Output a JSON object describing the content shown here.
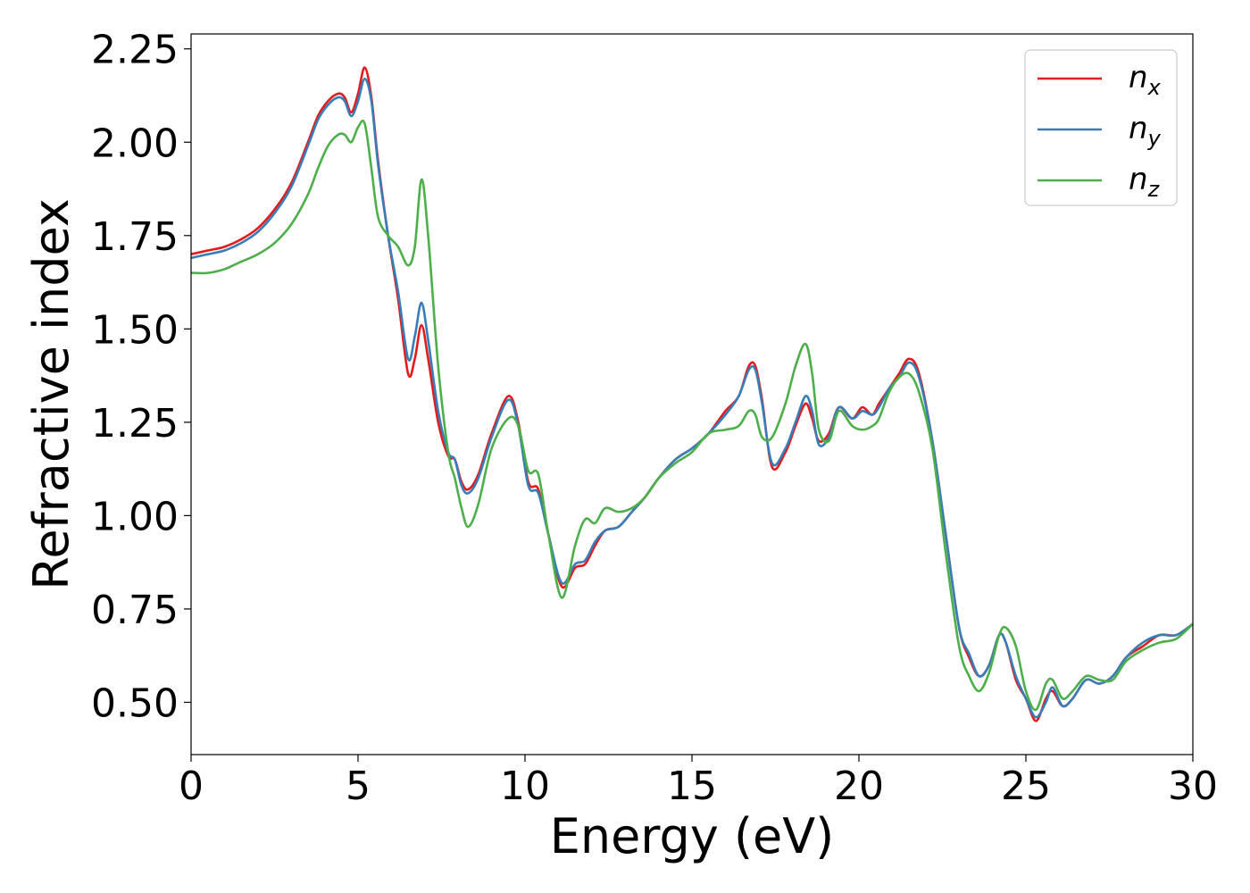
{
  "chart_data": {
    "type": "line",
    "title": "",
    "xlabel": "Energy (eV)",
    "ylabel": "Refractive index",
    "xlim": [
      0,
      30
    ],
    "ylim": [
      0.36,
      2.29
    ],
    "xticks": [
      "0",
      "5",
      "10",
      "15",
      "20",
      "25",
      "30"
    ],
    "yticks": [
      "0.50",
      "0.75",
      "1.00",
      "1.25",
      "1.50",
      "1.75",
      "2.00",
      "2.25"
    ],
    "grid": false,
    "legend_position": "top-right",
    "series": [
      {
        "name": "n",
        "subscript": "x",
        "color": "#e41a1c",
        "x": [
          0,
          0.5,
          1,
          1.5,
          2,
          2.5,
          3,
          3.5,
          3.8,
          4.1,
          4.4,
          4.6,
          4.8,
          5.0,
          5.2,
          5.4,
          5.6,
          5.9,
          6.2,
          6.5,
          6.7,
          6.9,
          7.1,
          7.4,
          7.7,
          7.9,
          8.1,
          8.3,
          8.6,
          9.0,
          9.5,
          9.8,
          10.1,
          10.4,
          10.7,
          11.1,
          11.5,
          11.8,
          12.1,
          12.4,
          12.8,
          13.2,
          13.6,
          14.0,
          14.5,
          15.0,
          15.5,
          16.0,
          16.4,
          16.7,
          16.9,
          17.1,
          17.4,
          17.8,
          18.1,
          18.4,
          18.6,
          18.8,
          19.1,
          19.4,
          19.8,
          20.1,
          20.4,
          20.6,
          20.9,
          21.2,
          21.5,
          21.8,
          22.2,
          22.6,
          23.0,
          23.3,
          23.6,
          23.9,
          24.2,
          24.4,
          24.7,
          25.0,
          25.3,
          25.6,
          25.8,
          26.1,
          26.4,
          26.8,
          27.2,
          27.6,
          28.0,
          28.5,
          29.0,
          29.5,
          30.0
        ],
        "y": [
          1.7,
          1.71,
          1.72,
          1.74,
          1.77,
          1.82,
          1.89,
          2.0,
          2.07,
          2.11,
          2.13,
          2.12,
          2.08,
          2.13,
          2.2,
          2.12,
          1.95,
          1.75,
          1.58,
          1.38,
          1.42,
          1.51,
          1.42,
          1.25,
          1.16,
          1.15,
          1.09,
          1.07,
          1.11,
          1.22,
          1.32,
          1.25,
          1.09,
          1.07,
          0.95,
          0.81,
          0.86,
          0.87,
          0.92,
          0.96,
          0.97,
          1.01,
          1.05,
          1.1,
          1.15,
          1.18,
          1.22,
          1.28,
          1.32,
          1.4,
          1.4,
          1.31,
          1.13,
          1.17,
          1.24,
          1.3,
          1.26,
          1.2,
          1.22,
          1.29,
          1.26,
          1.29,
          1.27,
          1.3,
          1.34,
          1.38,
          1.42,
          1.38,
          1.2,
          0.95,
          0.7,
          0.62,
          0.57,
          0.6,
          0.68,
          0.66,
          0.56,
          0.51,
          0.45,
          0.51,
          0.53,
          0.49,
          0.51,
          0.56,
          0.55,
          0.57,
          0.62,
          0.65,
          0.68,
          0.68,
          0.71
        ]
      },
      {
        "name": "n",
        "subscript": "y",
        "color": "#377eb8",
        "x": [
          0,
          0.5,
          1,
          1.5,
          2,
          2.5,
          3,
          3.5,
          3.8,
          4.1,
          4.4,
          4.6,
          4.8,
          5.0,
          5.2,
          5.4,
          5.6,
          5.9,
          6.2,
          6.5,
          6.7,
          6.9,
          7.1,
          7.4,
          7.7,
          7.9,
          8.1,
          8.3,
          8.6,
          9.0,
          9.5,
          9.8,
          10.1,
          10.4,
          10.7,
          11.1,
          11.5,
          11.8,
          12.1,
          12.4,
          12.8,
          13.2,
          13.6,
          14.0,
          14.5,
          15.0,
          15.5,
          16.0,
          16.4,
          16.7,
          16.9,
          17.1,
          17.4,
          17.8,
          18.1,
          18.4,
          18.6,
          18.8,
          19.1,
          19.4,
          19.8,
          20.1,
          20.4,
          20.6,
          20.9,
          21.2,
          21.5,
          21.8,
          22.2,
          22.6,
          23.0,
          23.3,
          23.6,
          23.9,
          24.2,
          24.4,
          24.7,
          25.0,
          25.3,
          25.6,
          25.8,
          26.1,
          26.4,
          26.8,
          27.2,
          27.6,
          28.0,
          28.5,
          29.0,
          29.5,
          30.0
        ],
        "y": [
          1.69,
          1.7,
          1.71,
          1.73,
          1.76,
          1.81,
          1.88,
          1.99,
          2.06,
          2.1,
          2.12,
          2.11,
          2.07,
          2.11,
          2.17,
          2.11,
          1.94,
          1.75,
          1.6,
          1.42,
          1.48,
          1.57,
          1.47,
          1.28,
          1.17,
          1.15,
          1.08,
          1.06,
          1.1,
          1.21,
          1.31,
          1.24,
          1.08,
          1.06,
          0.95,
          0.82,
          0.87,
          0.88,
          0.93,
          0.96,
          0.97,
          1.01,
          1.05,
          1.1,
          1.15,
          1.18,
          1.22,
          1.27,
          1.32,
          1.39,
          1.39,
          1.3,
          1.14,
          1.18,
          1.25,
          1.32,
          1.28,
          1.19,
          1.21,
          1.29,
          1.26,
          1.28,
          1.27,
          1.29,
          1.34,
          1.37,
          1.41,
          1.37,
          1.2,
          0.95,
          0.7,
          0.63,
          0.57,
          0.6,
          0.68,
          0.66,
          0.57,
          0.51,
          0.46,
          0.5,
          0.54,
          0.49,
          0.51,
          0.56,
          0.55,
          0.57,
          0.62,
          0.66,
          0.68,
          0.68,
          0.71
        ]
      },
      {
        "name": "n",
        "subscript": "z",
        "color": "#4daf4a",
        "x": [
          0,
          0.5,
          1,
          1.5,
          2,
          2.5,
          3,
          3.5,
          3.8,
          4.1,
          4.4,
          4.6,
          4.8,
          5.0,
          5.2,
          5.4,
          5.6,
          5.9,
          6.2,
          6.5,
          6.7,
          6.9,
          7.1,
          7.4,
          7.7,
          7.9,
          8.1,
          8.3,
          8.6,
          9.0,
          9.5,
          9.8,
          10.1,
          10.4,
          10.7,
          11.1,
          11.5,
          11.8,
          12.1,
          12.4,
          12.8,
          13.2,
          13.6,
          14.0,
          14.5,
          15.0,
          15.5,
          16.0,
          16.4,
          16.7,
          16.9,
          17.1,
          17.4,
          17.8,
          18.1,
          18.4,
          18.6,
          18.8,
          19.1,
          19.4,
          19.8,
          20.1,
          20.4,
          20.6,
          20.9,
          21.2,
          21.5,
          21.8,
          22.2,
          22.6,
          23.0,
          23.3,
          23.6,
          23.9,
          24.2,
          24.4,
          24.7,
          25.0,
          25.3,
          25.6,
          25.8,
          26.1,
          26.4,
          26.8,
          27.2,
          27.6,
          28.0,
          28.5,
          29.0,
          29.5,
          30.0
        ],
        "y": [
          1.65,
          1.65,
          1.66,
          1.68,
          1.7,
          1.73,
          1.78,
          1.86,
          1.93,
          1.99,
          2.02,
          2.02,
          2.0,
          2.04,
          2.05,
          1.93,
          1.8,
          1.75,
          1.72,
          1.67,
          1.72,
          1.9,
          1.75,
          1.4,
          1.17,
          1.1,
          1.02,
          0.97,
          1.03,
          1.18,
          1.26,
          1.24,
          1.12,
          1.11,
          0.95,
          0.78,
          0.92,
          0.99,
          0.98,
          1.02,
          1.01,
          1.02,
          1.05,
          1.1,
          1.14,
          1.17,
          1.22,
          1.23,
          1.24,
          1.28,
          1.27,
          1.21,
          1.21,
          1.3,
          1.4,
          1.46,
          1.38,
          1.23,
          1.2,
          1.28,
          1.24,
          1.23,
          1.24,
          1.26,
          1.33,
          1.37,
          1.38,
          1.33,
          1.18,
          0.9,
          0.65,
          0.57,
          0.53,
          0.58,
          0.68,
          0.7,
          0.65,
          0.53,
          0.48,
          0.55,
          0.56,
          0.51,
          0.53,
          0.57,
          0.56,
          0.56,
          0.61,
          0.64,
          0.66,
          0.67,
          0.71
        ]
      }
    ]
  }
}
